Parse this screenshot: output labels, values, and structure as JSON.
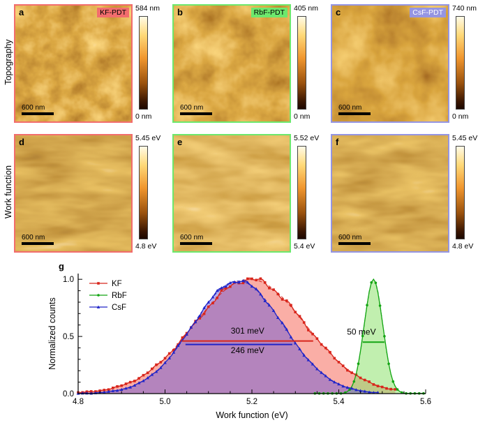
{
  "figure": {
    "rows": [
      {
        "label": "Topography"
      },
      {
        "label": "Work function"
      }
    ],
    "panels": [
      {
        "letter": "a",
        "badge": "KF-PDT",
        "scale_max": "584 nm",
        "scale_min": "0 nm",
        "scalebar_label": "600 nm"
      },
      {
        "letter": "b",
        "badge": "RbF-PDT",
        "scale_max": "405 nm",
        "scale_min": "0 nm",
        "scalebar_label": "600 nm"
      },
      {
        "letter": "c",
        "badge": "CsF-PDT",
        "scale_max": "740 nm",
        "scale_min": "0 nm",
        "scalebar_label": "600 nm"
      },
      {
        "letter": "d",
        "scale_max": "5.45 eV",
        "scale_min": "4.8 eV",
        "scalebar_label": "600 nm"
      },
      {
        "letter": "e",
        "scale_max": "5.52 eV",
        "scale_min": "5.4 eV",
        "scalebar_label": "600 nm"
      },
      {
        "letter": "f",
        "scale_max": "5.45 eV",
        "scale_min": "4.8 eV",
        "scalebar_label": "600 nm"
      }
    ],
    "panel_g_letter": "g",
    "colors": {
      "kf_accent": "#f26d6d",
      "rbf_accent": "#6de86d",
      "csf_accent": "#9595e2",
      "colorbar_ramp": [
        "#1c0800",
        "#9a520e",
        "#f0962e",
        "#ffd978",
        "#fffbe8"
      ]
    }
  },
  "chart_data": {
    "type": "line",
    "title": "",
    "xlabel": "Work function (eV)",
    "ylabel": "Normalized counts",
    "xlim": [
      4.8,
      5.6
    ],
    "ylim": [
      0,
      1.05
    ],
    "xticks": [
      4.8,
      5.0,
      5.2,
      5.4,
      5.6
    ],
    "yticks": [
      0.0,
      0.5,
      1.0
    ],
    "legend_position": "top-left",
    "grid": false,
    "series": [
      {
        "name": "KF",
        "marker": "square",
        "color": "#d8261c",
        "fill": "rgba(246,108,92,0.55)",
        "peak_center": 5.195,
        "fwhm_eV": 0.301,
        "peak_height": 1.0,
        "x_range": [
          4.8,
          5.53
        ]
      },
      {
        "name": "RbF",
        "marker": "circle",
        "color": "#13a513",
        "fill": "rgba(142,226,110,0.55)",
        "peak_center": 5.48,
        "fwhm_eV": 0.05,
        "peak_height": 1.0,
        "x_range": [
          5.345,
          5.6
        ]
      },
      {
        "name": "CsF",
        "marker": "triangle",
        "color": "#2025c8",
        "fill": "rgba(105,85,215,0.48)",
        "peak_center": 5.168,
        "fwhm_eV": 0.246,
        "peak_height": 0.985,
        "x_range": [
          4.8,
          5.49
        ]
      }
    ],
    "annotations": [
      {
        "text": "301 meV",
        "color": "#d8261c",
        "x1": 5.039,
        "x2": 5.341,
        "line_y": 0.46,
        "label_x": 5.19,
        "label_y": 0.525
      },
      {
        "text": "246 meV",
        "color": "#2025c8",
        "x1": 5.047,
        "x2": 5.293,
        "line_y": 0.43,
        "label_x": 5.19,
        "label_y": 0.355
      },
      {
        "text": "50 meV",
        "color": "#13a513",
        "x1": 5.455,
        "x2": 5.505,
        "line_y": 0.45,
        "label_x": 5.452,
        "label_y": 0.515
      }
    ]
  }
}
